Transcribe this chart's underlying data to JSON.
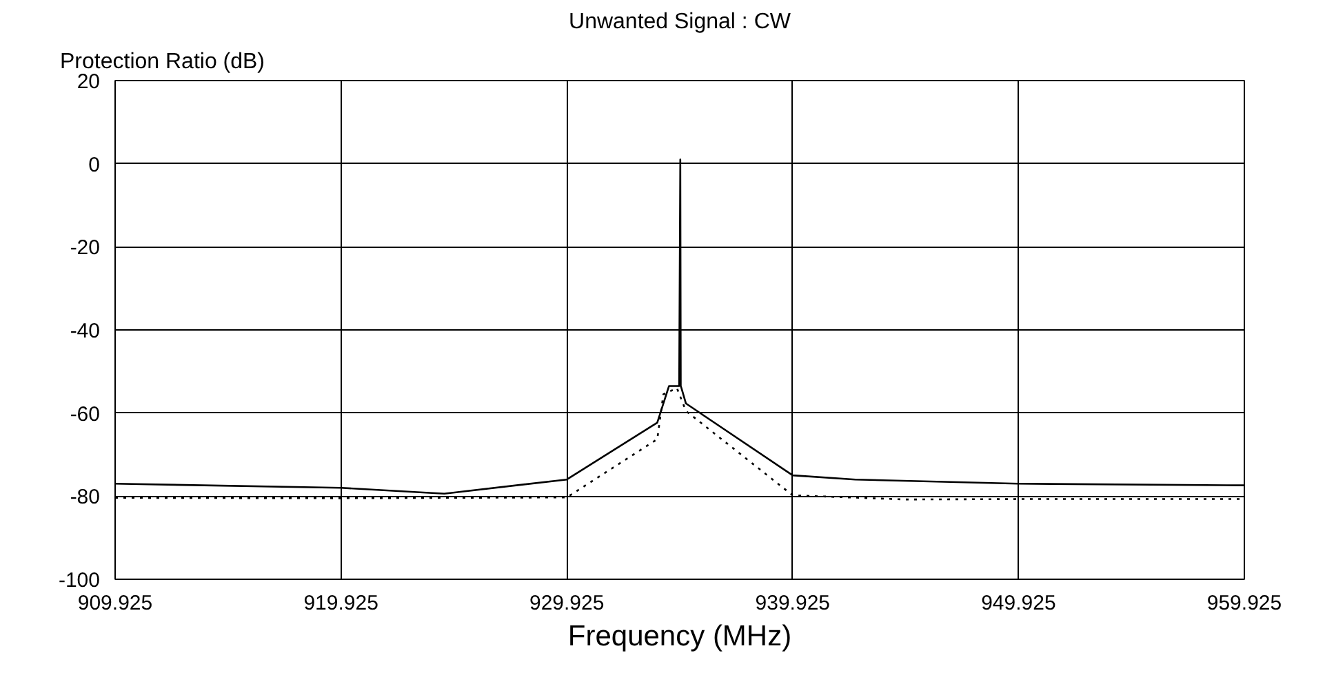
{
  "chart_data": {
    "type": "line",
    "title": "Unwanted Signal : CW",
    "ylabel": "Protection Ratio (dB)",
    "xlabel": "Frequency (MHz)",
    "xlim": [
      909.925,
      959.925
    ],
    "xticks": [
      909.925,
      919.925,
      929.925,
      939.925,
      949.925,
      959.925
    ],
    "ylim": [
      -100,
      20
    ],
    "yticks": [
      -100,
      -80,
      -60,
      -40,
      -20,
      0,
      20
    ],
    "grid": true,
    "marker": "none",
    "series": [
      {
        "color": "#000000",
        "line_style": "solid",
        "x": [
          909.925,
          919.925,
          924.5,
          929.925,
          933.93,
          934.45,
          934.9,
          934.95,
          934.97,
          935.0,
          935.2,
          939.925,
          942.7,
          949.925,
          959.925
        ],
        "values": [
          -77,
          -78,
          -79.4,
          -76,
          -62.3,
          -53.5,
          -53.5,
          1,
          -53.5,
          -54,
          -57.7,
          -75,
          -76,
          -77,
          -77.4
        ]
      },
      {
        "color": "#000000",
        "line_style": "dotted",
        "x": [
          909.925,
          919.925,
          929.925,
          933.93,
          934.2,
          934.8,
          935.2,
          939.925,
          944.9,
          949.925,
          959.925
        ],
        "values": [
          -80.4,
          -80.5,
          -80.3,
          -66.3,
          -55.5,
          -54,
          -59.5,
          -79.8,
          -80.8,
          -80.7,
          -80.7
        ]
      }
    ]
  }
}
